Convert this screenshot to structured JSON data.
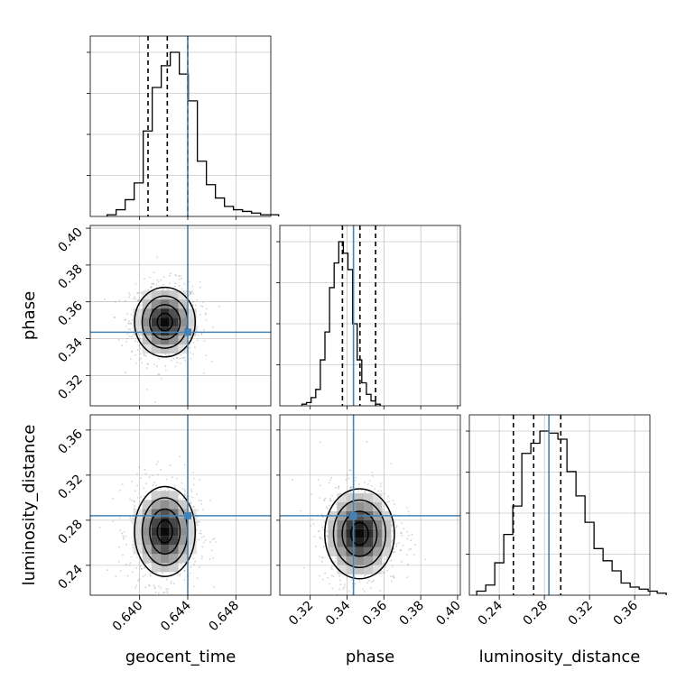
{
  "chart_data": {
    "type": "corner",
    "parameters": [
      "geocent_time",
      "phase",
      "luminosity_distance"
    ],
    "axis_labels": {
      "geocent_time": "geocent_time",
      "phase": "phase",
      "luminosity_distance": "luminosity_distance"
    },
    "ranges": {
      "geocent_time": [
        0.6359,
        0.6509
      ],
      "phase": [
        0.3035,
        0.4015
      ],
      "luminosity_distance": [
        0.2135,
        0.3735
      ]
    },
    "ticks": {
      "geocent_time": [
        0.64,
        0.644,
        0.648
      ],
      "phase": [
        0.32,
        0.34,
        0.36,
        0.38,
        0.4
      ],
      "luminosity_distance": [
        0.24,
        0.28,
        0.32,
        0.36
      ]
    },
    "tick_labels": {
      "geocent_time": [
        "0.640",
        "0.644",
        "0.648"
      ],
      "phase": [
        "0.32",
        "0.34",
        "0.36",
        "0.38",
        "0.40"
      ],
      "luminosity_distance": [
        "0.24",
        "0.28",
        "0.32",
        "0.36"
      ]
    },
    "truths": {
      "geocent_time": 0.644,
      "phase": 0.3435,
      "luminosity_distance": 0.284
    },
    "truth_color": "#4682b4",
    "quantiles": {
      "geocent_time": [
        0.6407,
        0.6423,
        0.644
      ],
      "phase": [
        0.3375,
        0.347,
        0.3555
      ],
      "luminosity_distance": [
        0.2525,
        0.2705,
        0.2945
      ]
    },
    "histograms": {
      "geocent_time": {
        "x_start": 0.6373,
        "bin_width": 0.00075,
        "counts": [
          1,
          4,
          10,
          20,
          51,
          77,
          90,
          98,
          85,
          69,
          33,
          19,
          11,
          6,
          4,
          3,
          2,
          1,
          1
        ]
      },
      "phase": {
        "x_start": 0.3155,
        "bin_width": 0.0025,
        "counts": [
          1,
          2,
          5,
          10,
          28,
          45,
          72,
          87,
          100,
          93,
          83,
          50,
          28,
          14,
          7,
          3,
          1
        ]
      },
      "luminosity_distance": {
        "x_start": 0.22,
        "bin_width": 0.008,
        "counts": [
          2,
          5,
          16,
          30,
          44,
          70,
          75,
          81,
          80,
          77,
          61,
          49,
          36,
          23,
          17,
          12,
          6,
          4,
          3,
          2,
          1
        ]
      }
    },
    "peaks_2d": {
      "phase_vs_geocent_time": {
        "x": 0.6421,
        "y": 0.349,
        "sx": 0.0012,
        "sy": 0.009
      },
      "luminosity_distance_vs_geocent_time": {
        "x": 0.6421,
        "y": 0.27,
        "sx": 0.0012,
        "sy": 0.019
      },
      "luminosity_distance_vs_phase": {
        "x": 0.3468,
        "y": 0.268,
        "sx": 0.009,
        "sy": 0.019
      }
    },
    "contour_levels_sigma": [
      0.5,
      1.0,
      1.5,
      2.0
    ],
    "grid": true,
    "colors": {
      "line": "#000000",
      "grid": "#b0b0b0",
      "scatter": "#808080"
    }
  }
}
